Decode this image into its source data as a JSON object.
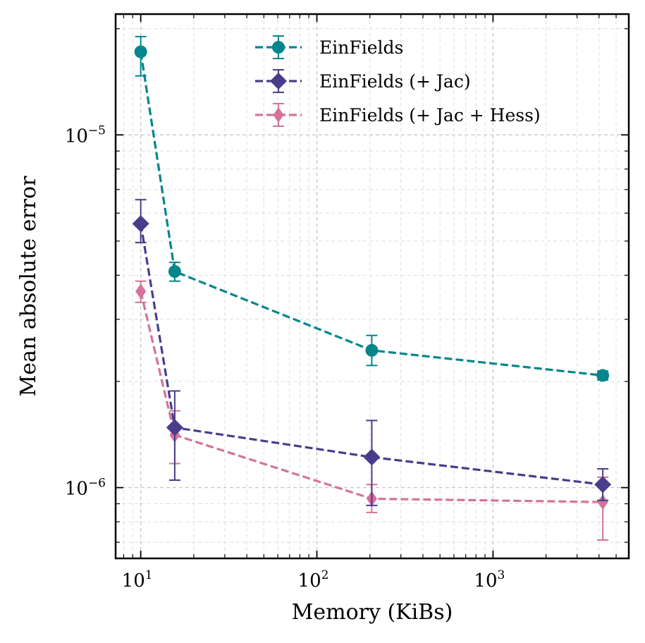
{
  "chart_data": {
    "type": "line",
    "xscale": "log",
    "yscale": "log",
    "xlabel": "Memory (KiBs)",
    "ylabel": "Mean absolute error",
    "xlim": [
      7.2,
      5900
    ],
    "ylim": [
      6.3e-07,
      2.2e-05
    ],
    "grid": true,
    "legend_position": "top-center",
    "xticks": [
      {
        "value": 10,
        "base": "10",
        "exp": "1"
      },
      {
        "value": 100,
        "base": "10",
        "exp": "2"
      },
      {
        "value": 1000,
        "base": "10",
        "exp": "3"
      }
    ],
    "yticks": [
      {
        "value": 1e-05,
        "base": "10",
        "exp": "−5"
      },
      {
        "value": 1e-06,
        "base": "10",
        "exp": "−6"
      }
    ],
    "series": [
      {
        "name": "EinFields",
        "color": "#00868b",
        "marker": "circle",
        "x": [
          10,
          15.6,
          205,
          4200
        ],
        "y": [
          1.72e-05,
          4.1e-06,
          2.45e-06,
          2.08e-06
        ],
        "err_low": [
          1.47e-05,
          3.85e-06,
          2.22e-06,
          2.02e-06
        ],
        "err_high": [
          1.9e-05,
          4.35e-06,
          2.7e-06,
          2.14e-06
        ]
      },
      {
        "name": "EinFields (+ Jac)",
        "color": "#483d8b",
        "marker": "diamond",
        "x": [
          10,
          15.6,
          205,
          4200
        ],
        "y": [
          5.6e-06,
          1.48e-06,
          1.22e-06,
          1.02e-06
        ],
        "err_low": [
          4.95e-06,
          1.05e-06,
          8.9e-07,
          9.2e-07
        ],
        "err_high": [
          6.55e-06,
          1.88e-06,
          1.55e-06,
          1.13e-06
        ]
      },
      {
        "name": "EinFields (+ Jac + Hess)",
        "color": "#d4729a",
        "marker": "thin_diamond",
        "x": [
          10,
          15.6,
          205,
          4200
        ],
        "y": [
          3.6e-06,
          1.41e-06,
          9.3e-07,
          9.1e-07
        ],
        "err_low": [
          3.35e-06,
          1.17e-06,
          8.5e-07,
          7.1e-07
        ],
        "err_high": [
          3.85e-06,
          1.65e-06,
          1.02e-06,
          1.07e-06
        ]
      }
    ]
  }
}
